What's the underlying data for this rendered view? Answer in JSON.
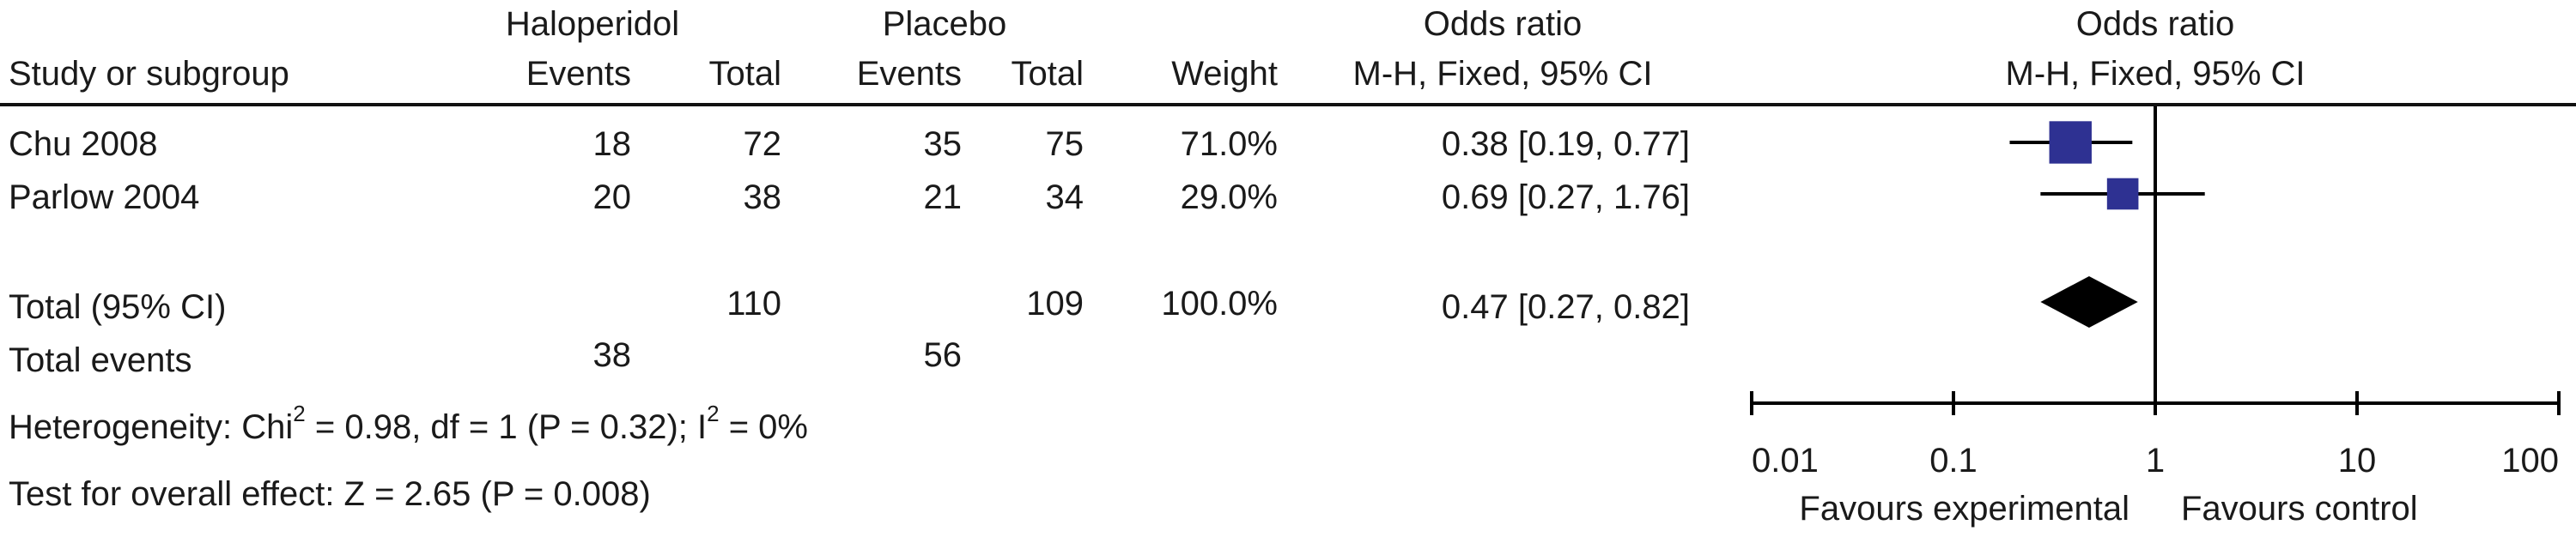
{
  "header": {
    "group1": "Haloperidol",
    "group2": "Placebo",
    "or_col_title": "Odds ratio",
    "or_col_method": "M-H, Fixed, 95% CI",
    "plot_title": "Odds ratio",
    "plot_method": "M-H, Fixed, 95% CI",
    "study_col": "Study or subgroup",
    "events": "Events",
    "total": "Total",
    "weight": "Weight"
  },
  "studies": [
    {
      "name": "Chu 2008",
      "events1": "18",
      "total1": "72",
      "events2": "35",
      "total2": "75",
      "weight": "71.0%",
      "ci_text": "0.38 [0.19, 0.77]"
    },
    {
      "name": "Parlow 2004",
      "events1": "20",
      "total1": "38",
      "events2": "21",
      "total2": "34",
      "weight": "29.0%",
      "ci_text": "0.69 [0.27, 1.76]"
    }
  ],
  "total": {
    "label": "Total (95% CI)",
    "total1": "110",
    "total2": "109",
    "weight": "100.0%",
    "ci_text": "0.47 [0.27, 0.82]",
    "events_label": "Total events",
    "events1": "38",
    "events2": "56"
  },
  "footer": {
    "heterogeneity_prefix": "Heterogeneity: Chi",
    "heterogeneity_sup1": "2",
    "heterogeneity_mid": " = 0.98, df = 1 (P = 0.32); I",
    "heterogeneity_sup2": "2",
    "heterogeneity_suffix": " = 0%",
    "overall_effect": "Test for overall effect: Z = 2.65 (P = 0.008)"
  },
  "axis": {
    "ticks": [
      "0.01",
      "0.1",
      "1",
      "10",
      "100"
    ],
    "favours_left": "Favours experimental",
    "favours_right": "Favours control"
  },
  "colors": {
    "marker": "#2e3192",
    "diamond": "#000000",
    "line": "#000000"
  },
  "chart_data": {
    "type": "scatter",
    "subtype": "forest",
    "title": "Odds ratio",
    "xscale": "log",
    "xlim": [
      0.01,
      100
    ],
    "reference_line": 1,
    "points": [
      {
        "study": "Chu 2008",
        "or": 0.38,
        "ci": [
          0.19,
          0.77
        ],
        "weight": 71.0
      },
      {
        "study": "Parlow 2004",
        "or": 0.69,
        "ci": [
          0.27,
          1.76
        ],
        "weight": 29.0
      }
    ],
    "pooled": {
      "label": "Total (95% CI)",
      "or": 0.47,
      "ci": [
        0.27,
        0.82
      ]
    }
  }
}
